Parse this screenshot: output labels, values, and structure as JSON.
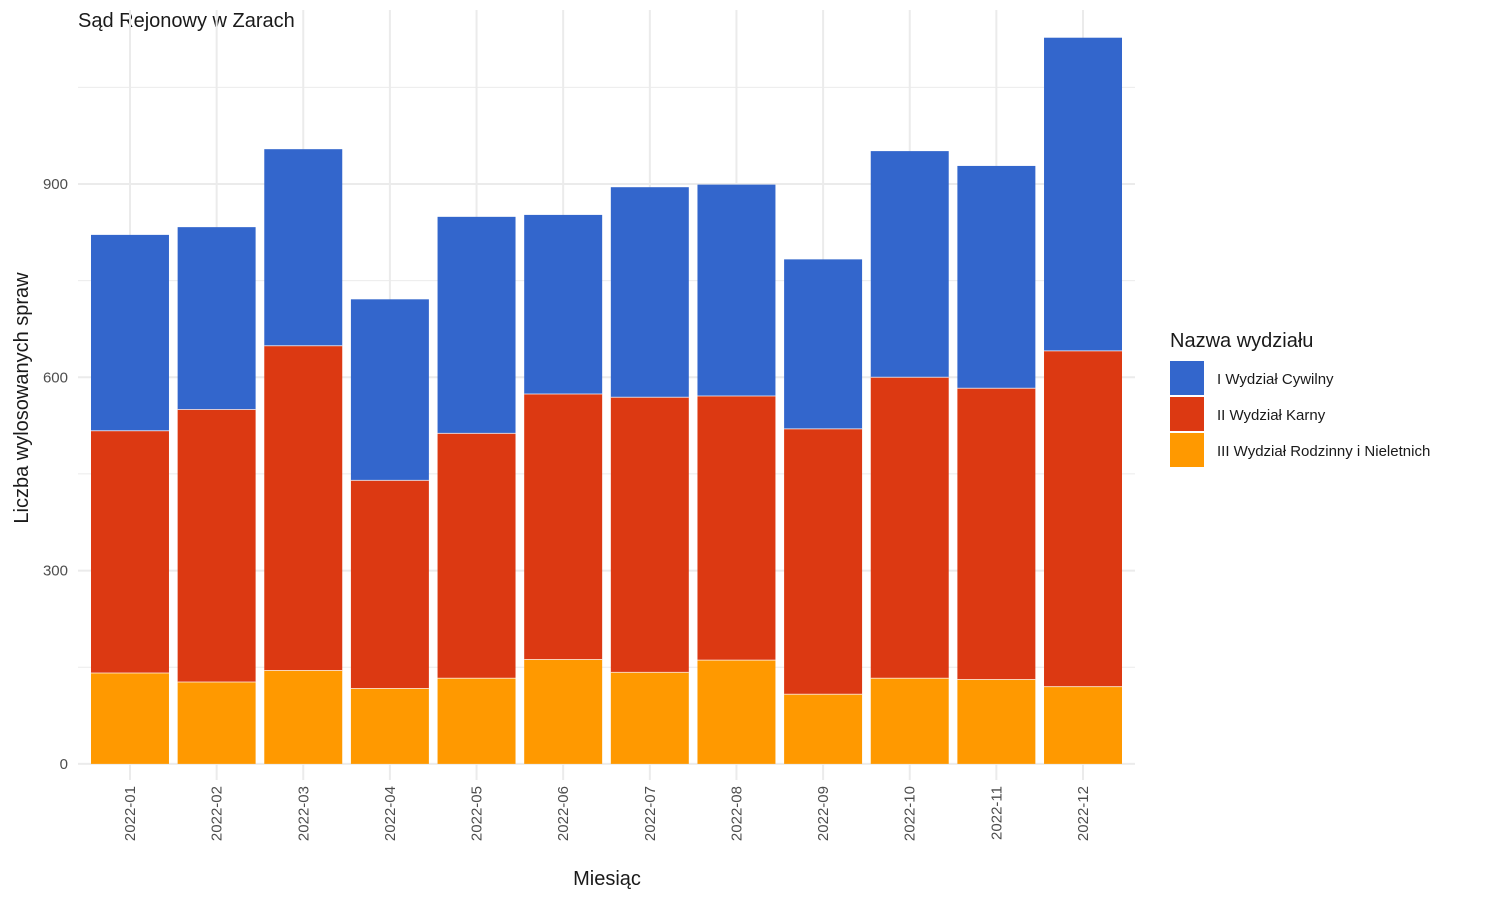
{
  "chart_data": {
    "type": "bar",
    "stacked": true,
    "title": "Sąd Rejonowy w Zarach",
    "xlabel": "Miesiąc",
    "ylabel": "Liczba wylosowanych spraw",
    "ylim": [
      -25,
      1170
    ],
    "yticks": [
      0,
      300,
      600,
      900
    ],
    "categories": [
      "2022-01",
      "2022-02",
      "2022-03",
      "2022-04",
      "2022-05",
      "2022-06",
      "2022-07",
      "2022-08",
      "2022-09",
      "2022-10",
      "2022-11",
      "2022-12"
    ],
    "series": [
      {
        "name": "III Wydział Rodzinny i Nieletnich",
        "color": "#FF9900",
        "values": [
          141,
          127,
          145,
          117,
          133,
          162,
          142,
          161,
          108,
          133,
          131,
          120
        ]
      },
      {
        "name": "II Wydział Karny",
        "color": "#DC3912",
        "values": [
          376,
          423,
          504,
          323,
          380,
          412,
          427,
          410,
          412,
          467,
          452,
          521
        ]
      },
      {
        "name": "I Wydział Cywilny",
        "color": "#3366CC",
        "values": [
          304,
          283,
          305,
          281,
          336,
          278,
          326,
          328,
          263,
          351,
          345,
          486
        ]
      }
    ],
    "legend": {
      "title": "Nazwa wydziału",
      "position": "right",
      "entries": [
        "I Wydział Cywilny",
        "II Wydział Karny",
        "III Wydział Rodzinny i Nieletnich"
      ]
    },
    "grid": true,
    "background": "#FFFFFF",
    "grid_color": "#EBEBEB"
  }
}
